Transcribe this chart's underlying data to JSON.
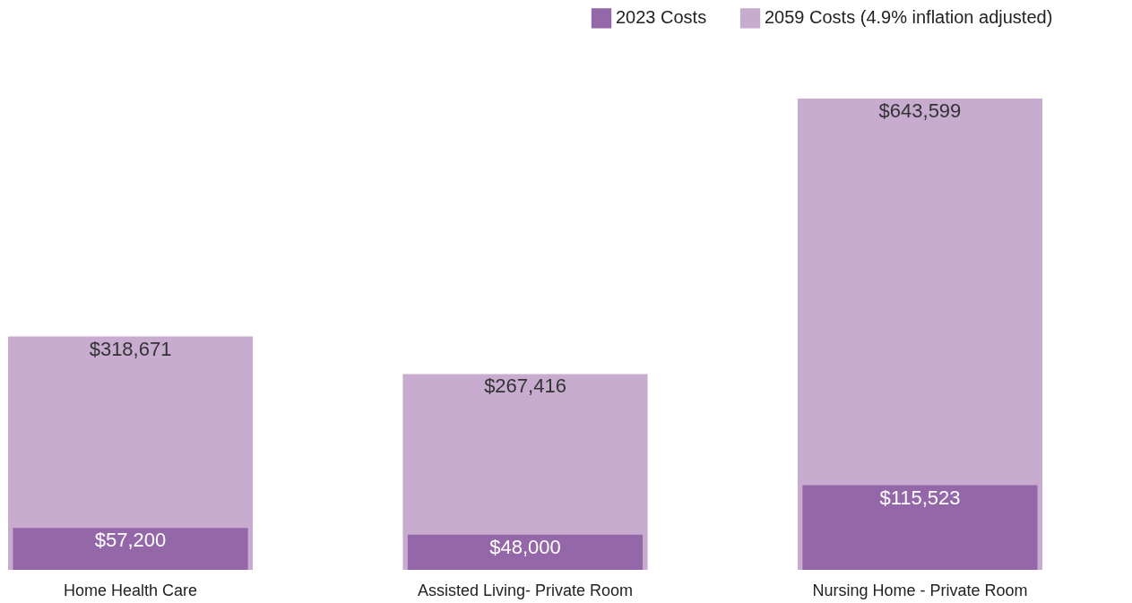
{
  "chart_data": {
    "type": "bar",
    "categories": [
      "Home Health Care",
      "Assisted Living- Private Room",
      "Nursing Home - Private Room"
    ],
    "series": [
      {
        "name": "2023 Costs",
        "color": "#9467a8",
        "values": [
          57200,
          48000,
          115523
        ],
        "value_labels": [
          "$57,200",
          "$48,000",
          "$115,523"
        ]
      },
      {
        "name": "2059 Costs (4.9% inflation adjusted)",
        "color": "#c7acd0",
        "values": [
          318671,
          267416,
          643599
        ],
        "value_labels": [
          "$318,671",
          "$267,416",
          "$643,599"
        ]
      }
    ],
    "ylim": [
      0,
      643599
    ],
    "legend": "top right",
    "grid": false
  }
}
